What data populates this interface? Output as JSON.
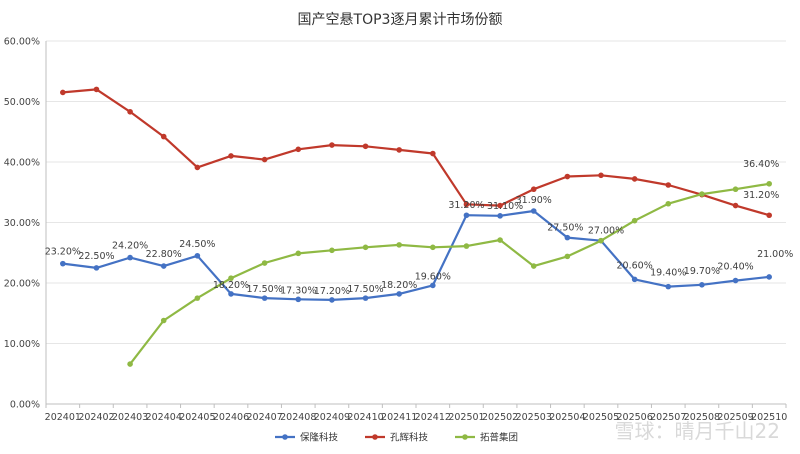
{
  "chart_data": {
    "type": "line",
    "title": "国产空悬TOP3逐月累计市场份额",
    "categories": [
      "202401",
      "202402",
      "202403",
      "202404",
      "202405",
      "202406",
      "202407",
      "202408",
      "202409",
      "202410",
      "202411",
      "202412",
      "202501",
      "202502",
      "202503",
      "202504",
      "202505",
      "202506",
      "202507",
      "202508",
      "202509",
      "202510"
    ],
    "ylim": [
      0,
      60
    ],
    "y_ticks": [
      "0.00%",
      "10.00%",
      "20.00%",
      "30.00%",
      "40.00%",
      "50.00%",
      "60.00%"
    ],
    "grid": "horizontal",
    "legend": "bottom",
    "series": [
      {
        "name": "保隆科技",
        "color": "#4472c4",
        "values": [
          23.2,
          22.5,
          24.2,
          22.8,
          24.5,
          18.2,
          17.5,
          17.3,
          17.2,
          17.5,
          18.2,
          19.6,
          31.2,
          31.1,
          31.9,
          27.5,
          27.0,
          20.6,
          19.4,
          19.7,
          20.4,
          21.0
        ],
        "labels": [
          "23.20%",
          "22.50%",
          "24.20%",
          "22.80%",
          "24.50%",
          "18.20%",
          "17.50%",
          "17.30%",
          "17.20%",
          "17.50%",
          "18.20%",
          "19.60%",
          "31.20%",
          "31.10%",
          "31.90%",
          "27.50%",
          "27.00%",
          "20.60%",
          "19.40%",
          "19.70%",
          "20.40%",
          "21.00%"
        ]
      },
      {
        "name": "孔辉科技",
        "color": "#c0392b",
        "values": [
          51.5,
          52.0,
          48.3,
          44.2,
          39.1,
          41.0,
          40.4,
          42.1,
          42.8,
          42.6,
          42.0,
          41.4,
          33.0,
          32.8,
          35.5,
          37.6,
          37.8,
          37.2,
          36.2,
          34.6,
          32.8,
          31.2
        ],
        "labels": [
          "",
          "",
          "",
          "",
          "",
          "",
          "",
          "",
          "",
          "",
          "",
          "",
          "",
          "",
          "",
          "",
          "",
          "",
          "",
          "",
          "",
          "31.20%"
        ]
      },
      {
        "name": "拓普集团",
        "color": "#8fb944",
        "values": [
          null,
          null,
          6.6,
          13.8,
          17.5,
          20.8,
          23.3,
          24.9,
          25.4,
          25.9,
          26.3,
          25.9,
          26.1,
          27.1,
          22.8,
          24.4,
          27.0,
          30.3,
          33.1,
          34.7,
          35.5,
          36.4
        ],
        "labels": [
          "",
          "",
          "",
          "",
          "",
          "",
          "",
          "",
          "",
          "",
          "",
          "",
          "",
          "",
          "",
          "",
          "",
          "",
          "",
          "",
          "",
          "36.40%"
        ]
      }
    ]
  },
  "watermark": {
    "text": "雪球：晴月千山22"
  }
}
